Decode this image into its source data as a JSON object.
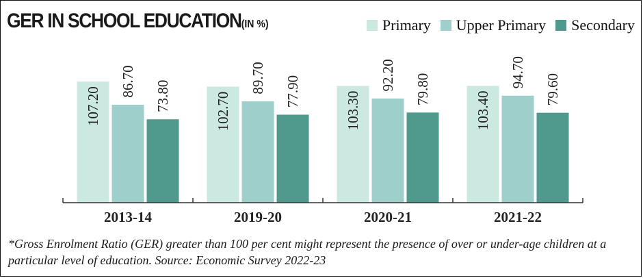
{
  "chart_data": {
    "type": "bar",
    "title": "GER IN SCHOOL EDUCATION",
    "title_unit": "(IN %)",
    "categories": [
      "2013-14",
      "2019-20",
      "2020-21",
      "2021-22"
    ],
    "series": [
      {
        "name": "Primary",
        "color": "#cbe8e1",
        "values": [
          107.2,
          102.7,
          103.3,
          103.4
        ],
        "labels": [
          "107.20",
          "102.70",
          "103.30",
          "103.40"
        ]
      },
      {
        "name": "Upper Primary",
        "color": "#9fcfca",
        "values": [
          86.7,
          89.7,
          92.2,
          94.7
        ],
        "labels": [
          "86.70",
          "89.70",
          "92.20",
          "94.70"
        ]
      },
      {
        "name": "Secondary",
        "color": "#4f9a8c",
        "values": [
          73.8,
          77.9,
          79.8,
          79.6
        ],
        "labels": [
          "73.80",
          "77.90",
          "79.80",
          "79.60"
        ]
      }
    ],
    "xlabel": "",
    "ylabel": "",
    "ylim": [
      0,
      110
    ],
    "legend_position": "top-right",
    "grid": false
  },
  "footnote": "*Gross Enrolment Ratio (GER) greater than 100 per cent might represent the presence of over or under-age children at a particular level of education. Source: Economic Survey 2022-23"
}
